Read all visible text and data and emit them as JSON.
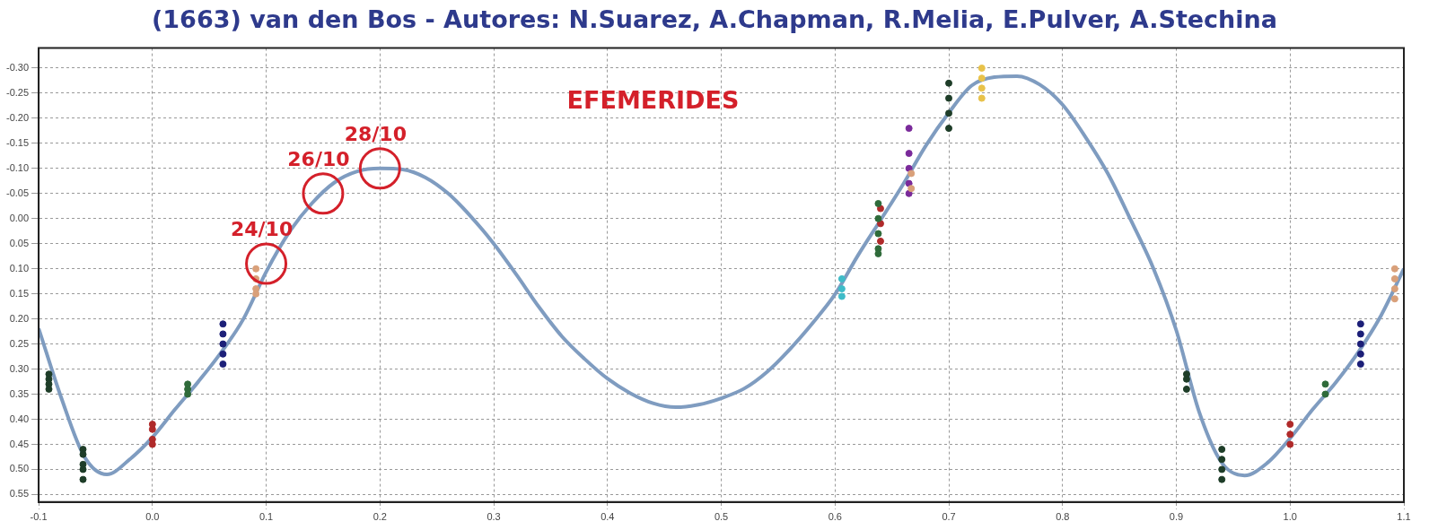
{
  "chart_data": {
    "type": "scatter",
    "title": "(1663) van den Bos - Autores: N.Suarez, A.Chapman, R.Melia, E.Pulver, A.Stechina",
    "xlim": [
      -0.1,
      1.1
    ],
    "xticks": [
      {
        "value": -0.1,
        "label": "-0.1"
      },
      {
        "value": 0,
        "label": "0.0"
      },
      {
        "value": 0.1,
        "label": "0.1"
      },
      {
        "value": 0.2,
        "label": "0.2"
      },
      {
        "value": 0.3,
        "label": "0.3"
      },
      {
        "value": 0.4,
        "label": "0.4"
      },
      {
        "value": 0.5,
        "label": "0.5"
      },
      {
        "value": 0.6,
        "label": "0.6"
      },
      {
        "value": 0.7,
        "label": "0.7"
      },
      {
        "value": 0.8,
        "label": "0.8"
      },
      {
        "value": 0.9,
        "label": "0.9"
      },
      {
        "value": 1,
        "label": "1.0"
      },
      {
        "value": 1.1,
        "label": "1.1"
      }
    ],
    "ylim": [
      0.565,
      -0.34
    ],
    "yticks": [
      {
        "value": -0.3,
        "label": "-0.30"
      },
      {
        "value": -0.25,
        "label": "-0.25"
      },
      {
        "value": -0.2,
        "label": "-0.20"
      },
      {
        "value": -0.15,
        "label": "-0.15"
      },
      {
        "value": -0.1,
        "label": "-0.10"
      },
      {
        "value": -0.05,
        "label": "-0.05"
      },
      {
        "value": 0,
        "label": "0.00"
      },
      {
        "value": 0.05,
        "label": "0.05"
      },
      {
        "value": 0.1,
        "label": "0.10"
      },
      {
        "value": 0.15,
        "label": "0.15"
      },
      {
        "value": 0.2,
        "label": "0.20"
      },
      {
        "value": 0.25,
        "label": "0.25"
      },
      {
        "value": 0.3,
        "label": "0.30"
      },
      {
        "value": 0.35,
        "label": "0.35"
      },
      {
        "value": 0.4,
        "label": "0.40"
      },
      {
        "value": 0.45,
        "label": "0.45"
      },
      {
        "value": 0.5,
        "label": "0.50"
      },
      {
        "value": 0.55,
        "label": "0.55"
      }
    ],
    "grid": true,
    "marker": "circle",
    "series": [
      {
        "type": "line",
        "color": "#7f9cc0",
        "marker": "none",
        "x": [
          -0.1,
          -0.08,
          -0.06,
          -0.04,
          -0.02,
          0,
          0.02,
          0.04,
          0.06,
          0.08,
          0.1,
          0.12,
          0.14,
          0.16,
          0.18,
          0.2,
          0.22,
          0.24,
          0.26,
          0.28,
          0.3,
          0.32,
          0.34,
          0.36,
          0.38,
          0.4,
          0.42,
          0.44,
          0.46,
          0.48,
          0.5,
          0.52,
          0.54,
          0.56,
          0.58,
          0.6,
          0.62,
          0.64,
          0.66,
          0.68,
          0.7,
          0.72,
          0.74,
          0.76,
          0.78,
          0.8,
          0.82,
          0.84,
          0.86,
          0.88,
          0.9,
          0.92,
          0.94,
          0.96,
          0.98,
          1,
          1.02,
          1.04,
          1.06,
          1.08,
          1.1
        ],
        "values": [
          0.219,
          0.358,
          0.474,
          0.51,
          0.48,
          0.436,
          0.38,
          0.326,
          0.268,
          0.2,
          0.106,
          0.028,
          -0.03,
          -0.072,
          -0.094,
          -0.1,
          -0.098,
          -0.082,
          -0.05,
          -0.004,
          0.05,
          0.112,
          0.177,
          0.235,
          0.28,
          0.319,
          0.348,
          0.368,
          0.376,
          0.371,
          0.358,
          0.339,
          0.306,
          0.261,
          0.209,
          0.151,
          0.074,
          0.003,
          -0.069,
          -0.146,
          -0.211,
          -0.265,
          -0.282,
          -0.284,
          -0.267,
          -0.227,
          -0.163,
          -0.089,
          0.003,
          0.1,
          0.223,
          0.385,
          0.487,
          0.512,
          0.487,
          0.438,
          0.38,
          0.327,
          0.266,
          0.193,
          0.1
        ]
      },
      {
        "color": "#1e3d28",
        "x": [
          -0.091,
          -0.091,
          -0.091,
          -0.091,
          -0.061,
          -0.061,
          -0.061,
          -0.061,
          -0.061,
          0.909,
          0.909,
          0.909,
          0.94,
          0.94,
          0.94,
          0.94,
          0.7,
          0.7,
          0.7,
          0.7
        ],
        "values": [
          0.31,
          0.32,
          0.33,
          0.34,
          0.46,
          0.47,
          0.49,
          0.5,
          0.52,
          0.31,
          0.32,
          0.34,
          0.46,
          0.48,
          0.5,
          0.52,
          -0.27,
          -0.24,
          -0.21,
          -0.18
        ]
      },
      {
        "color": "#2f6b3a",
        "x": [
          0.031,
          0.031,
          0.031,
          1.031,
          1.031,
          0.638,
          0.638,
          0.638,
          0.638,
          0.638
        ],
        "values": [
          0.33,
          0.34,
          0.35,
          0.33,
          0.35,
          -0.03,
          0,
          0.03,
          0.06,
          0.07
        ]
      },
      {
        "color": "#b02a2a",
        "x": [
          0,
          0,
          0,
          0,
          1,
          1,
          1,
          0.64,
          0.64,
          0.64
        ],
        "values": [
          0.41,
          0.42,
          0.44,
          0.45,
          0.41,
          0.43,
          0.45,
          -0.02,
          0.01,
          0.045
        ]
      },
      {
        "color": "#1c1f78",
        "x": [
          0.062,
          0.062,
          0.062,
          0.062,
          0.062,
          1.062,
          1.062,
          1.062,
          1.062,
          1.062
        ],
        "values": [
          0.21,
          0.23,
          0.25,
          0.27,
          0.29,
          0.21,
          0.23,
          0.25,
          0.27,
          0.29
        ]
      },
      {
        "color": "#d9a07a",
        "x": [
          0.091,
          0.091,
          0.091,
          0.091,
          1.092,
          1.092,
          1.092,
          1.092,
          0.667,
          0.667
        ],
        "values": [
          0.1,
          0.12,
          0.14,
          0.15,
          0.1,
          0.12,
          0.14,
          0.16,
          -0.09,
          -0.06
        ]
      },
      {
        "color": "#3fbcc8",
        "x": [
          0.606,
          0.606,
          0.606
        ],
        "values": [
          0.12,
          0.14,
          0.155
        ]
      },
      {
        "color": "#7a2a9a",
        "x": [
          0.665,
          0.665,
          0.665,
          0.665,
          0.665
        ],
        "values": [
          -0.18,
          -0.13,
          -0.1,
          -0.07,
          -0.05
        ]
      },
      {
        "color": "#e8c24a",
        "x": [
          0.729,
          0.729,
          0.729,
          0.729
        ],
        "values": [
          -0.3,
          -0.28,
          -0.26,
          -0.24
        ]
      }
    ],
    "annotations": [
      {
        "text": "24/10",
        "x": 0.1,
        "y": 0.09
      },
      {
        "text": "26/10",
        "x": 0.15,
        "y": -0.05
      },
      {
        "text": "28/10",
        "x": 0.2,
        "y": -0.1
      },
      "EFEMERIDES"
    ]
  }
}
